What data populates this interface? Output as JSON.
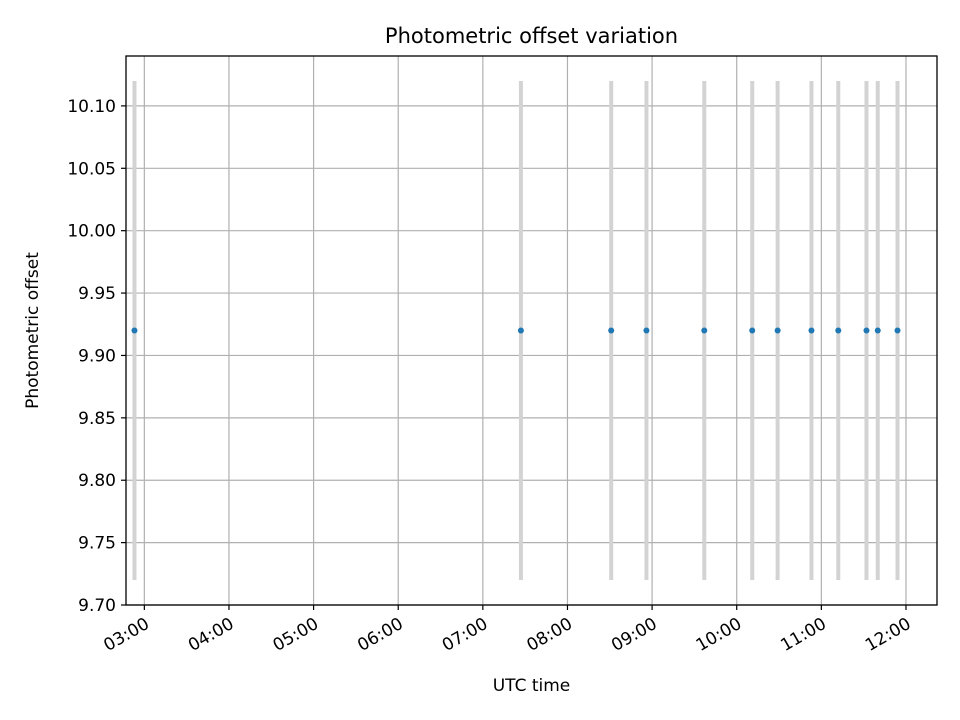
{
  "chart_data": {
    "type": "scatter",
    "title": "Photometric offset variation",
    "xlabel": "UTC time",
    "ylabel": "Photometric offset",
    "xlim": [
      "02:47",
      "12:22"
    ],
    "ylim": [
      9.7,
      10.14
    ],
    "x_ticks": [
      "03:00",
      "04:00",
      "05:00",
      "06:00",
      "07:00",
      "08:00",
      "09:00",
      "10:00",
      "11:00",
      "12:00"
    ],
    "y_ticks": [
      9.7,
      9.75,
      9.8,
      9.85,
      9.9,
      9.95,
      10.0,
      10.05,
      10.1
    ],
    "y_tick_labels": [
      "9.70",
      "9.75",
      "9.80",
      "9.85",
      "9.90",
      "9.95",
      "10.00",
      "10.05",
      "10.10"
    ],
    "grid": true,
    "series": [
      {
        "x": [
          "02:53",
          "07:27",
          "08:31",
          "08:56",
          "09:37",
          "10:11",
          "10:29",
          "10:53",
          "11:12",
          "11:32",
          "11:40",
          "11:54"
        ],
        "y": [
          9.92,
          9.92,
          9.92,
          9.92,
          9.92,
          9.92,
          9.92,
          9.92,
          9.92,
          9.92,
          9.92,
          9.92
        ],
        "y_err_low": [
          9.72,
          9.72,
          9.72,
          9.72,
          9.72,
          9.72,
          9.72,
          9.72,
          9.72,
          9.72,
          9.72,
          9.72
        ],
        "y_err_high": [
          10.12,
          10.12,
          10.12,
          10.12,
          10.12,
          10.12,
          10.12,
          10.12,
          10.12,
          10.12,
          10.12,
          10.12
        ],
        "marker_color": "#1f77b4",
        "errorbar_color": "#d3d3d3"
      }
    ]
  }
}
